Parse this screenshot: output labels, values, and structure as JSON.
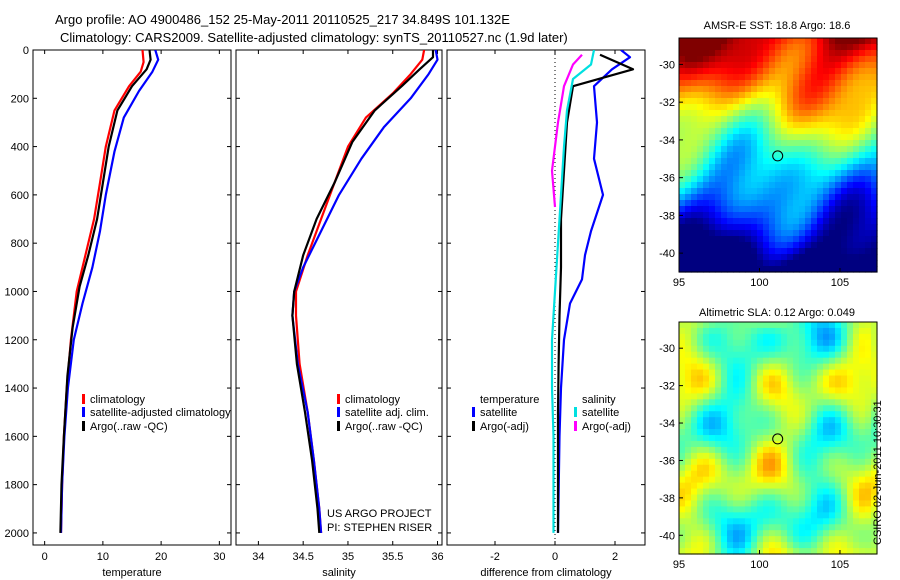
{
  "titles": {
    "line1": "Argo profile: AO 4900486_152 25-May-2011 20110525_217 34.849S 101.132E",
    "line2": "Climatology: CARS2009. Satellite-adjusted climatology: synTS_20110527.nc (1.9d later)"
  },
  "credit": {
    "line1": "US ARGO PROJECT",
    "line2": "PI: STEPHEN RISER"
  },
  "stamp": "CSIRO 02-Jun-2011 10:30:31",
  "colors": {
    "climatology": "#ff0000",
    "satellite": "#0000ff",
    "argo": "#000000",
    "sal_satellite": "#00e0e0",
    "sal_argo": "#ff00ff"
  },
  "chart_data": [
    {
      "type": "line",
      "xlabel": "temperature",
      "ylabel": "",
      "xlim": [
        -2,
        32
      ],
      "ylim": [
        2050,
        0
      ],
      "xticks": [
        0,
        10,
        20,
        30
      ],
      "yticks": [
        0,
        200,
        400,
        600,
        800,
        1000,
        1200,
        1400,
        1600,
        1800,
        2000
      ],
      "legend": {
        "placement": "bottom-right",
        "entries": [
          "climatology",
          "satellite-adjusted climatology",
          "Argo(..raw -QC)"
        ]
      },
      "series": [
        {
          "name": "climatology",
          "color": "#ff0000",
          "points": [
            [
              16.8,
              0
            ],
            [
              17.0,
              50
            ],
            [
              16.5,
              90
            ],
            [
              14.5,
              150
            ],
            [
              12,
              250
            ],
            [
              10.5,
              400
            ],
            [
              9.5,
              550
            ],
            [
              8.5,
              700
            ],
            [
              7.0,
              850
            ],
            [
              5.5,
              1000
            ],
            [
              4.5,
              1200
            ],
            [
              3.8,
              1400
            ],
            [
              3.3,
              1600
            ],
            [
              3.0,
              1800
            ],
            [
              2.8,
              2000
            ]
          ]
        },
        {
          "name": "satellite-adjusted climatology",
          "color": "#0000ff",
          "points": [
            [
              19.0,
              0
            ],
            [
              19.5,
              40
            ],
            [
              18.5,
              90
            ],
            [
              16.2,
              170
            ],
            [
              13.6,
              280
            ],
            [
              12.0,
              420
            ],
            [
              10.5,
              600
            ],
            [
              9.5,
              750
            ],
            [
              8.2,
              900
            ],
            [
              6.5,
              1050
            ],
            [
              5.0,
              1200
            ],
            [
              4.0,
              1400
            ],
            [
              3.4,
              1600
            ],
            [
              3.0,
              1800
            ],
            [
              2.8,
              2000
            ]
          ]
        },
        {
          "name": "Argo(..raw -QC)",
          "color": "#000000",
          "points": [
            [
              18.0,
              0
            ],
            [
              18.2,
              40
            ],
            [
              17.5,
              80
            ],
            [
              15.0,
              150
            ],
            [
              12.5,
              250
            ],
            [
              11.0,
              400
            ],
            [
              10.0,
              550
            ],
            [
              9.0,
              700
            ],
            [
              7.5,
              850
            ],
            [
              6.0,
              980
            ],
            [
              4.8,
              1150
            ],
            [
              3.9,
              1350
            ],
            [
              3.3,
              1600
            ],
            [
              2.9,
              1800
            ],
            [
              2.7,
              2000
            ]
          ]
        }
      ]
    },
    {
      "type": "line",
      "xlabel": "salinity",
      "ylabel": "",
      "xlim": [
        33.75,
        36.05
      ],
      "ylim": [
        2050,
        0
      ],
      "xticks": [
        34,
        34.5,
        35,
        35.5,
        36
      ],
      "legend": {
        "placement": "bottom-right",
        "entries": [
          "climatology",
          "satellite adj. clim.",
          "Argo(..raw -QC)"
        ]
      },
      "series": [
        {
          "name": "climatology",
          "color": "#ff0000",
          "points": [
            [
              35.85,
              0
            ],
            [
              35.83,
              40
            ],
            [
              35.7,
              100
            ],
            [
              35.5,
              180
            ],
            [
              35.2,
              280
            ],
            [
              35.0,
              400
            ],
            [
              34.85,
              550
            ],
            [
              34.7,
              700
            ],
            [
              34.55,
              850
            ],
            [
              34.42,
              1000
            ],
            [
              34.42,
              1100
            ],
            [
              34.46,
              1300
            ],
            [
              34.55,
              1500
            ],
            [
              34.62,
              1700
            ],
            [
              34.68,
              1900
            ],
            [
              34.7,
              2000
            ]
          ]
        },
        {
          "name": "satellite adj. clim.",
          "color": "#0000ff",
          "points": [
            [
              35.98,
              0
            ],
            [
              36.0,
              40
            ],
            [
              35.9,
              100
            ],
            [
              35.7,
              200
            ],
            [
              35.4,
              320
            ],
            [
              35.15,
              450
            ],
            [
              34.9,
              600
            ],
            [
              34.7,
              750
            ],
            [
              34.5,
              900
            ],
            [
              34.4,
              1000
            ],
            [
              34.38,
              1100
            ],
            [
              34.44,
              1300
            ],
            [
              34.55,
              1500
            ],
            [
              34.62,
              1700
            ],
            [
              34.68,
              1900
            ],
            [
              34.7,
              2000
            ]
          ]
        },
        {
          "name": "Argo(..raw -QC)",
          "color": "#000000",
          "points": [
            [
              35.95,
              0
            ],
            [
              35.95,
              30
            ],
            [
              35.8,
              80
            ],
            [
              35.6,
              150
            ],
            [
              35.3,
              250
            ],
            [
              35.05,
              380
            ],
            [
              34.85,
              550
            ],
            [
              34.65,
              700
            ],
            [
              34.5,
              850
            ],
            [
              34.4,
              1000
            ],
            [
              34.38,
              1100
            ],
            [
              34.43,
              1300
            ],
            [
              34.52,
              1500
            ],
            [
              34.6,
              1700
            ],
            [
              34.66,
              1900
            ],
            [
              34.68,
              2000
            ]
          ]
        }
      ]
    },
    {
      "type": "line",
      "xlabel": "difference from climatology",
      "ylabel": "",
      "xlim": [
        -3.6,
        3.0
      ],
      "ylim": [
        2050,
        0
      ],
      "xticks": [
        -2,
        0,
        2
      ],
      "legend": {
        "placement": "bottom",
        "entries": [
          "temperature",
          "satellite",
          "Argo(-adj)",
          "salinity",
          "satellite",
          "Argo(-adj)"
        ]
      },
      "series": [
        {
          "name": "temperature satellite",
          "color": "#0000ff",
          "points": [
            [
              2.2,
              0
            ],
            [
              2.5,
              30
            ],
            [
              1.9,
              80
            ],
            [
              1.3,
              150
            ],
            [
              1.4,
              300
            ],
            [
              1.3,
              450
            ],
            [
              1.6,
              600
            ],
            [
              1.2,
              750
            ],
            [
              1.0,
              850
            ],
            [
              0.9,
              950
            ],
            [
              0.5,
              1050
            ],
            [
              0.3,
              1200
            ],
            [
              0.2,
              1400
            ],
            [
              0.15,
              1600
            ],
            [
              0.1,
              2000
            ]
          ]
        },
        {
          "name": "temperature Argo(-adj)",
          "color": "#000000",
          "points": [
            [
              1.5,
              20
            ],
            [
              2.6,
              80
            ],
            [
              0.6,
              150
            ],
            [
              0.4,
              300
            ],
            [
              0.3,
              500
            ],
            [
              0.2,
              700
            ],
            [
              0.2,
              900
            ],
            [
              0.15,
              1100
            ],
            [
              0.12,
              1300
            ],
            [
              0.1,
              1500
            ],
            [
              0.1,
              2000
            ]
          ]
        },
        {
          "name": "salinity satellite",
          "color": "#00e0e0",
          "points": [
            [
              1.3,
              0
            ],
            [
              1.2,
              60
            ],
            [
              0.6,
              120
            ],
            [
              0.4,
              250
            ],
            [
              0.3,
              400
            ],
            [
              0.2,
              600
            ],
            [
              0.1,
              800
            ],
            [
              0.0,
              1000
            ],
            [
              -0.1,
              1200
            ],
            [
              -0.1,
              1400
            ],
            [
              -0.05,
              1600
            ],
            [
              -0.05,
              2000
            ]
          ]
        },
        {
          "name": "salinity Argo(-adj)",
          "color": "#ff00ff",
          "points": [
            [
              0.9,
              20
            ],
            [
              0.6,
              60
            ],
            [
              0.3,
              150
            ],
            [
              0.1,
              300
            ],
            [
              -0.1,
              500
            ],
            [
              0.0,
              650
            ]
          ]
        }
      ]
    },
    {
      "type": "heatmap",
      "title": "AMSR-E SST: 18.8 Argo: 18.6",
      "xlim": [
        95,
        107.3
      ],
      "ylim": [
        -41,
        -28.6
      ],
      "xticks": [
        95,
        100,
        105
      ],
      "yticks": [
        -30,
        -32,
        -34,
        -36,
        -38,
        -40
      ],
      "colormap": "jet",
      "marker": {
        "lon": 101.132,
        "lat": -34.849
      }
    },
    {
      "type": "heatmap",
      "title": "Altimetric SLA: 0.12 Argo: 0.049",
      "xlim": [
        95,
        107.3
      ],
      "ylim": [
        -41,
        -28.6
      ],
      "xticks": [
        95,
        100,
        105
      ],
      "yticks": [
        -30,
        -32,
        -34,
        -36,
        -38,
        -40
      ],
      "colormap": "jet",
      "marker": {
        "lon": 101.132,
        "lat": -34.849
      }
    }
  ]
}
